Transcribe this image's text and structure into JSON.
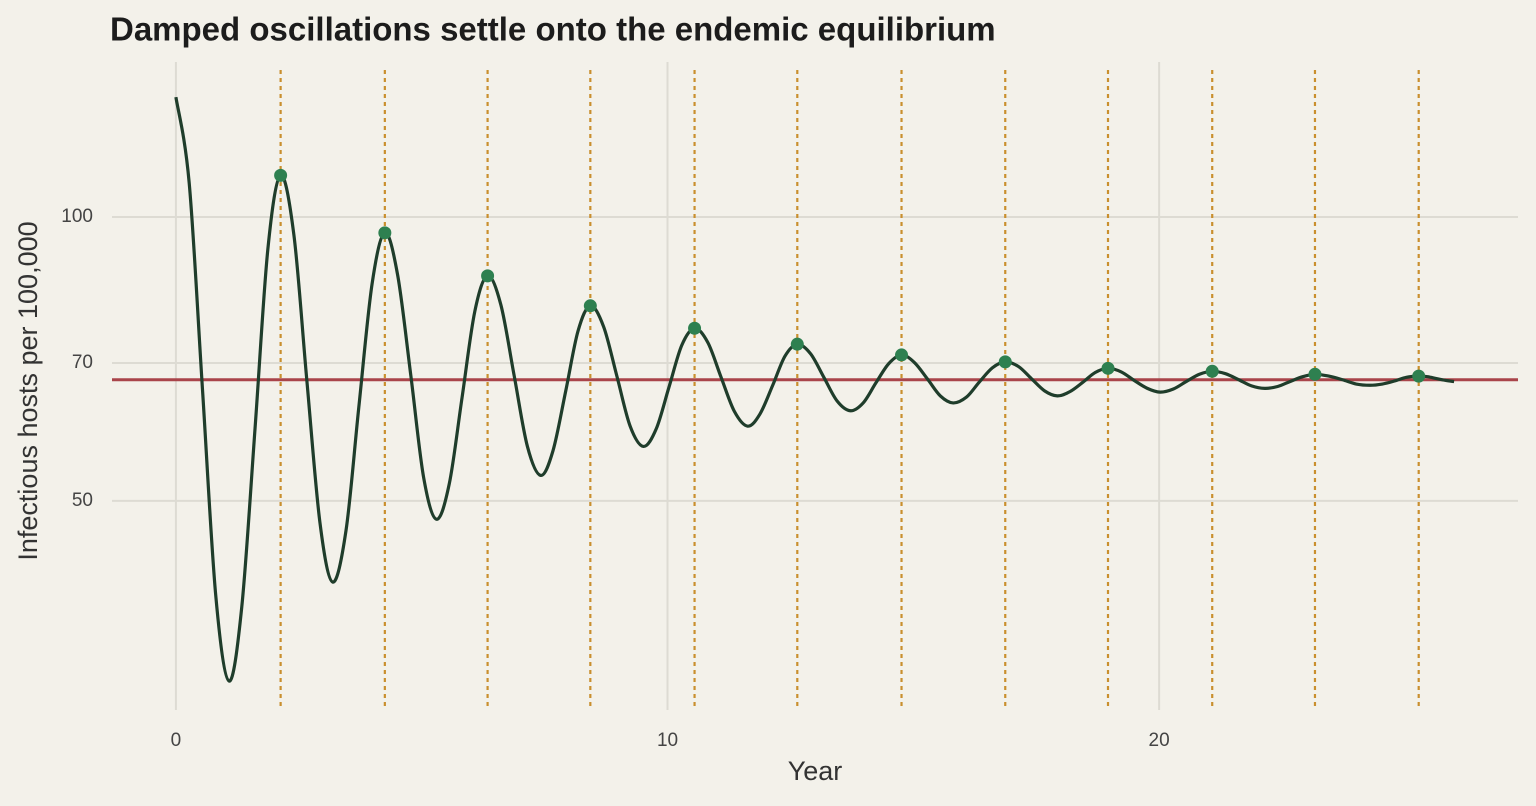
{
  "chart_data": {
    "type": "line",
    "title": "Damped oscillations settle onto the endemic equilibrium",
    "x_label": "Year",
    "y_label": "Infectious hosts per 100,000",
    "xlim": [
      -1.3,
      27.3
    ],
    "ylim": [
      30,
      146
    ],
    "xticks": [
      0,
      10,
      20
    ],
    "yticks": [
      50,
      70,
      100
    ],
    "y_scale": "log",
    "grid": true,
    "series": [
      {
        "color": "#1f3d2b",
        "x": [
          0,
          0.27,
          0.54,
          0.81,
          1.08,
          1.34,
          1.61,
          1.87,
          2.13,
          2.4,
          2.66,
          2.93,
          3.19,
          3.46,
          3.72,
          3.99,
          4.25,
          4.51,
          4.78,
          5.04,
          5.3,
          5.56,
          5.82,
          6.08,
          6.34,
          6.61,
          6.88,
          7.15,
          7.42,
          7.67,
          7.93,
          8.18,
          8.43,
          8.7,
          8.97,
          9.24,
          9.51,
          9.77,
          10.03,
          10.29,
          10.55,
          10.82,
          11.09,
          11.36,
          11.63,
          11.88,
          12.14,
          12.39,
          12.64,
          12.91,
          13.18,
          13.45,
          13.72,
          13.98,
          14.24,
          14.5,
          14.76,
          15.02,
          15.29,
          15.55,
          15.81,
          16.08,
          16.34,
          16.61,
          16.87,
          17.14,
          17.4,
          17.67,
          17.93,
          18.19,
          18.45,
          18.7,
          18.96,
          19.23,
          19.49,
          19.76,
          20.02,
          20.29,
          20.55,
          20.82,
          21.08,
          21.35,
          21.62,
          21.88,
          22.15,
          22.41,
          22.66,
          22.92,
          23.17,
          23.45,
          23.73,
          24.01,
          24.29,
          24.54,
          24.79,
          25.03,
          25.28,
          25.46,
          25.64,
          25.82,
          26.0
        ],
        "values": [
          134.0,
          108.7,
          65.7,
          39.7,
          32.2,
          38.6,
          59.7,
          92.4,
          110.7,
          95.7,
          67.4,
          47.4,
          41.0,
          46.5,
          62.8,
          84.9,
          96.2,
          86.8,
          67.8,
          52.9,
          47.8,
          52.1,
          64.3,
          79.4,
          86.6,
          80.7,
          67.9,
          57.1,
          53.2,
          56.5,
          65.4,
          75.7,
          80.5,
          76.5,
          67.8,
          60.0,
          57.1,
          59.6,
          66.0,
          73.1,
          76.2,
          73.6,
          67.6,
          62.2,
          60.0,
          61.8,
          66.3,
          71.2,
          73.3,
          71.6,
          67.6,
          63.8,
          62.3,
          63.5,
          66.7,
          69.9,
          71.4,
          70.1,
          67.3,
          64.6,
          63.5,
          64.4,
          66.8,
          69.2,
          70.2,
          69.4,
          67.4,
          65.4,
          64.6,
          65.3,
          66.8,
          68.4,
          69.1,
          68.5,
          67.1,
          65.8,
          65.2,
          65.7,
          66.9,
          68.1,
          68.6,
          68.2,
          67.2,
          66.2,
          65.8,
          66.1,
          66.9,
          67.7,
          68.1,
          67.8,
          67.2,
          66.5,
          66.3,
          66.5,
          67.0,
          67.6,
          67.8,
          67.7,
          67.4,
          67.1,
          66.9
        ]
      }
    ],
    "peaks": {
      "color": "#2e8050",
      "line_color": "#c98f2e",
      "x": [
        2.13,
        4.25,
        6.34,
        8.43,
        10.55,
        12.64,
        14.76,
        16.87,
        18.96,
        21.08,
        23.17,
        25.28
      ],
      "values": [
        110.7,
        96.2,
        86.6,
        80.5,
        76.2,
        73.3,
        71.4,
        70.2,
        69.1,
        68.6,
        68.1,
        67.8
      ]
    },
    "equilibrium": {
      "value": 67.2,
      "color": "#a9444a"
    }
  }
}
